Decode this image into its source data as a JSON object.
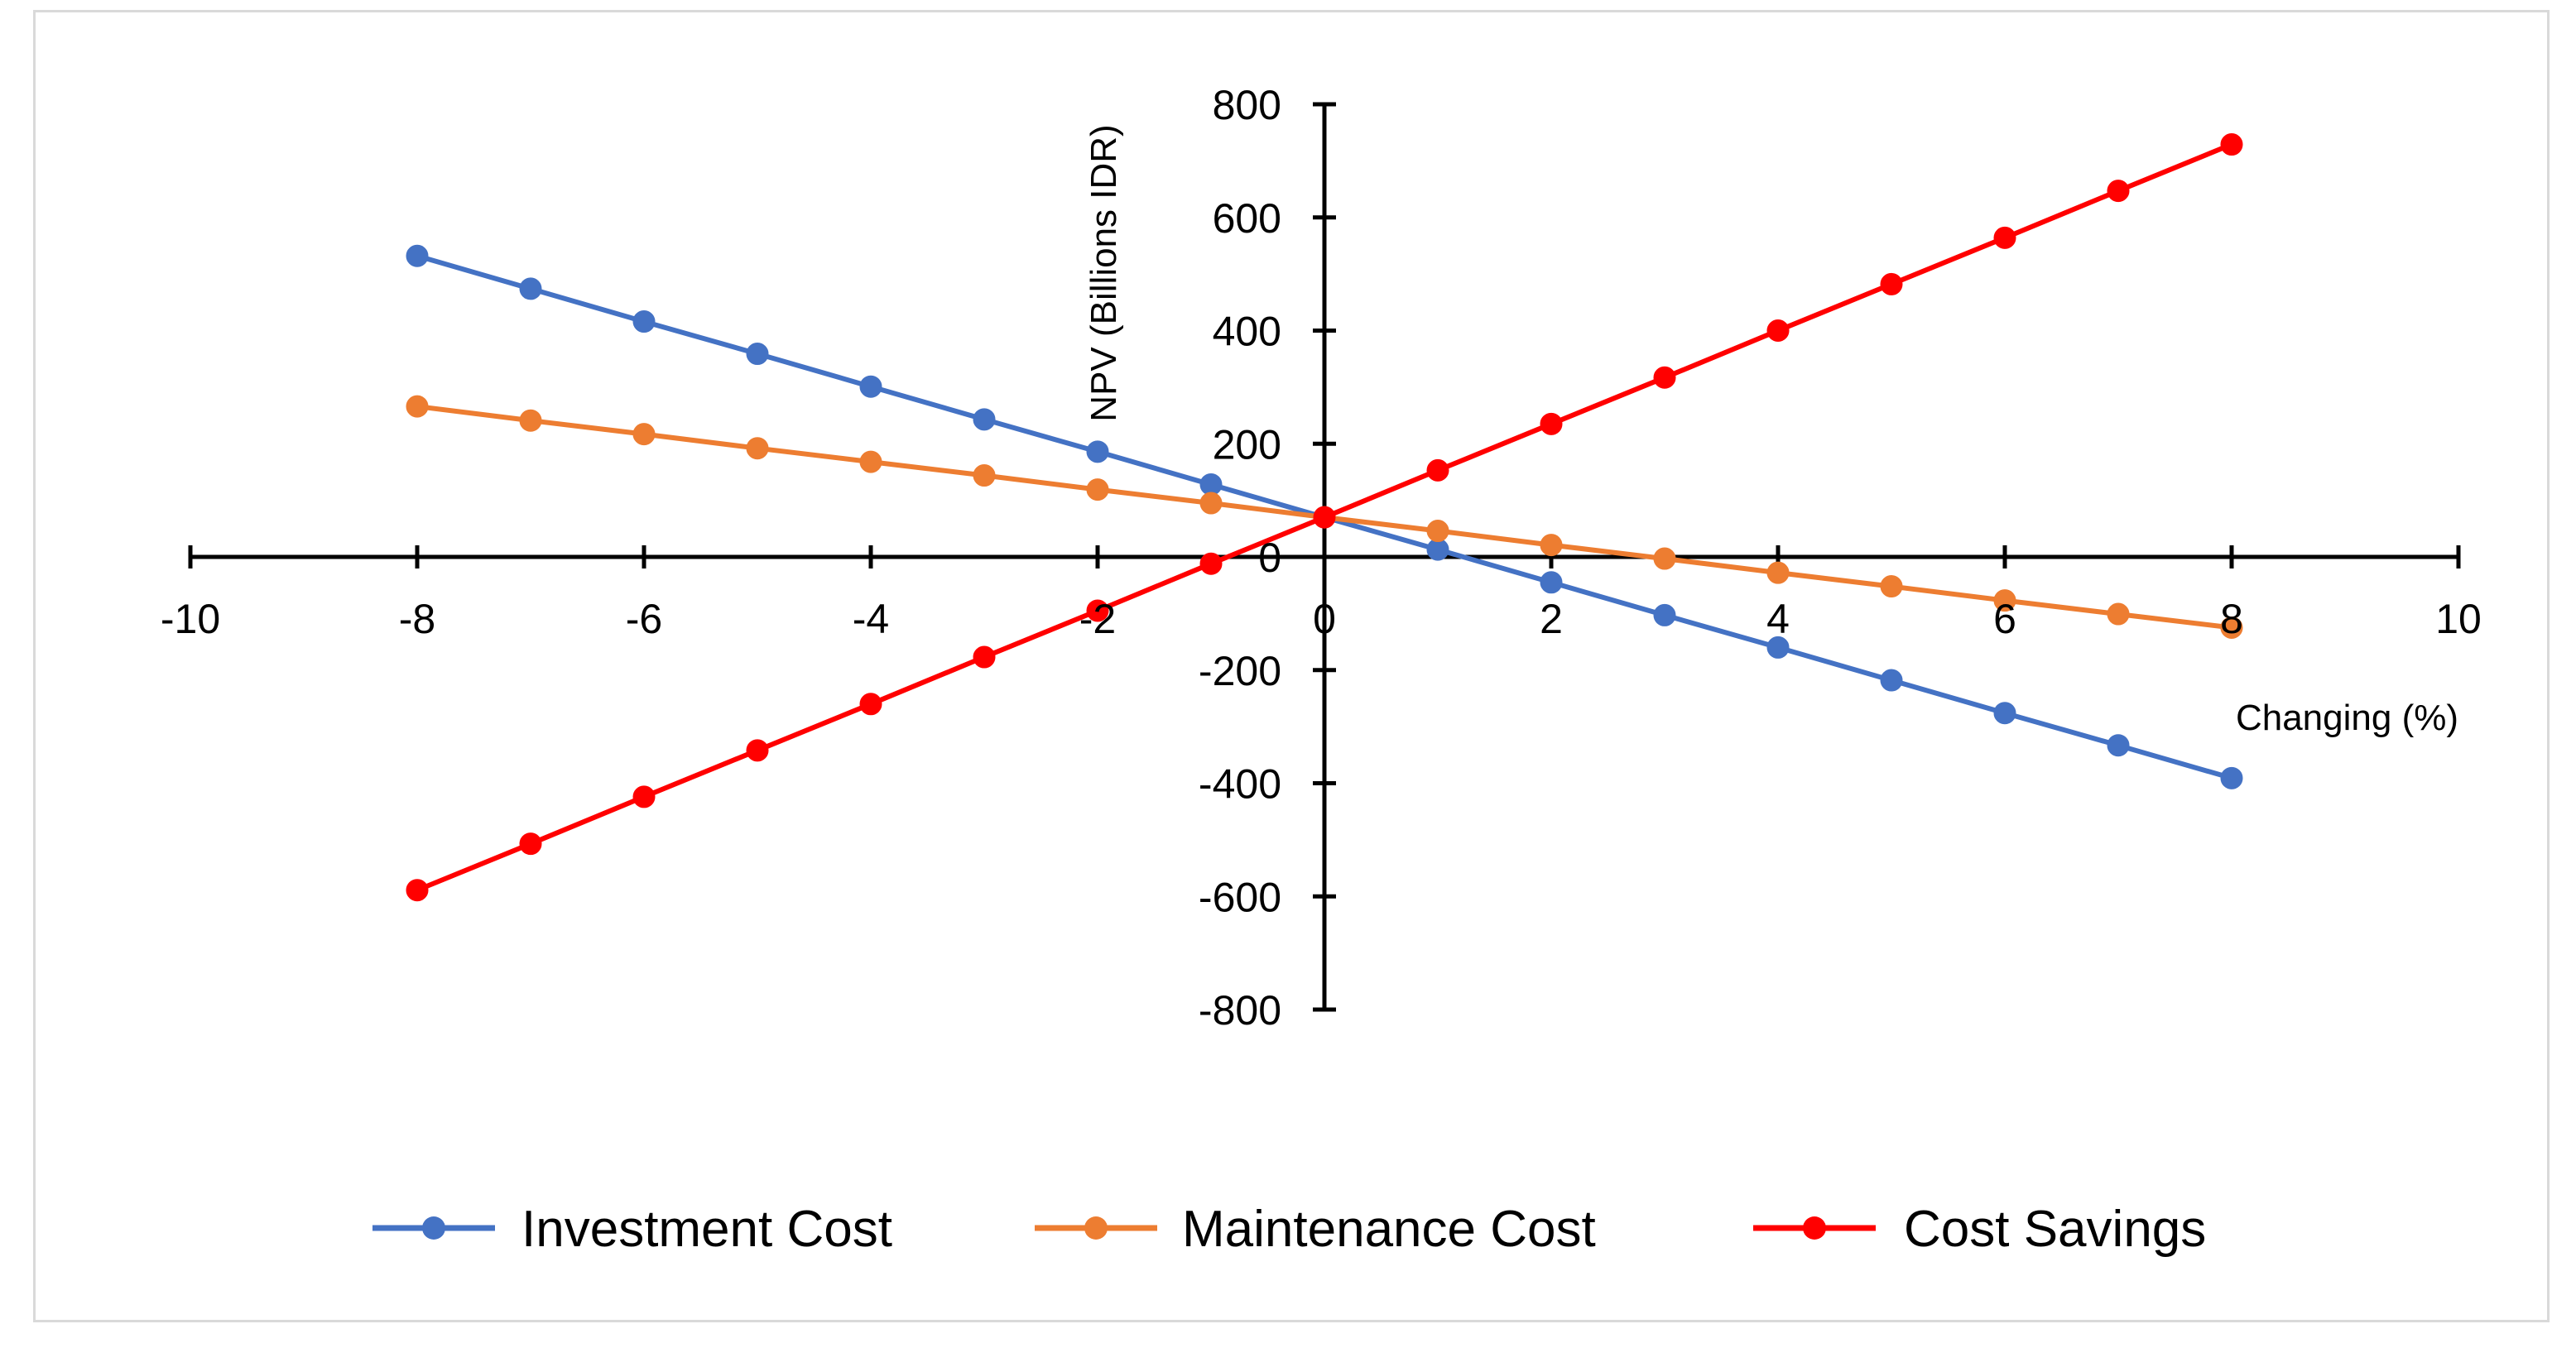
{
  "chart_data": {
    "type": "line",
    "title": "",
    "xlabel": "Changing (%)",
    "ylabel": "NPV (Billions IDR)",
    "xlim": [
      -10,
      10
    ],
    "ylim": [
      -800,
      800
    ],
    "x_ticks": [
      -10,
      -8,
      -6,
      -4,
      -2,
      0,
      2,
      4,
      6,
      8,
      10
    ],
    "y_ticks": [
      -800,
      -600,
      -400,
      -200,
      0,
      200,
      400,
      600,
      800
    ],
    "x_tick_labels": [
      "-10",
      "-8",
      "-6",
      "-4",
      "-2",
      "0",
      "2",
      "4",
      "6",
      "8",
      "10"
    ],
    "y_tick_labels": [
      "-800",
      "-600",
      "-400",
      "-200",
      "0",
      "200",
      "400",
      "600",
      "800"
    ],
    "grid": false,
    "legend_position": "bottom",
    "x": [
      -8,
      -7,
      -6,
      -5,
      -4,
      -3,
      -2,
      -1,
      0,
      1,
      2,
      3,
      4,
      5,
      6,
      7,
      8
    ],
    "series": [
      {
        "name": "Investment Cost",
        "color": "#4472c4",
        "values": [
          532,
          474,
          416,
          359,
          301,
          243,
          186,
          128,
          70,
          13,
          -45,
          -103,
          -160,
          -218,
          -276,
          -333,
          -391
        ]
      },
      {
        "name": "Maintenance Cost",
        "color": "#ed7d31",
        "values": [
          266,
          241,
          217,
          192,
          168,
          144,
          119,
          95,
          70,
          46,
          21,
          -3,
          -28,
          -52,
          -77,
          -101,
          -125
        ]
      },
      {
        "name": "Cost Savings",
        "color": "#ff0000",
        "values": [
          -589,
          -507,
          -424,
          -342,
          -260,
          -177,
          -95,
          -12,
          70,
          153,
          235,
          317,
          400,
          482,
          564,
          647,
          729
        ]
      }
    ]
  }
}
